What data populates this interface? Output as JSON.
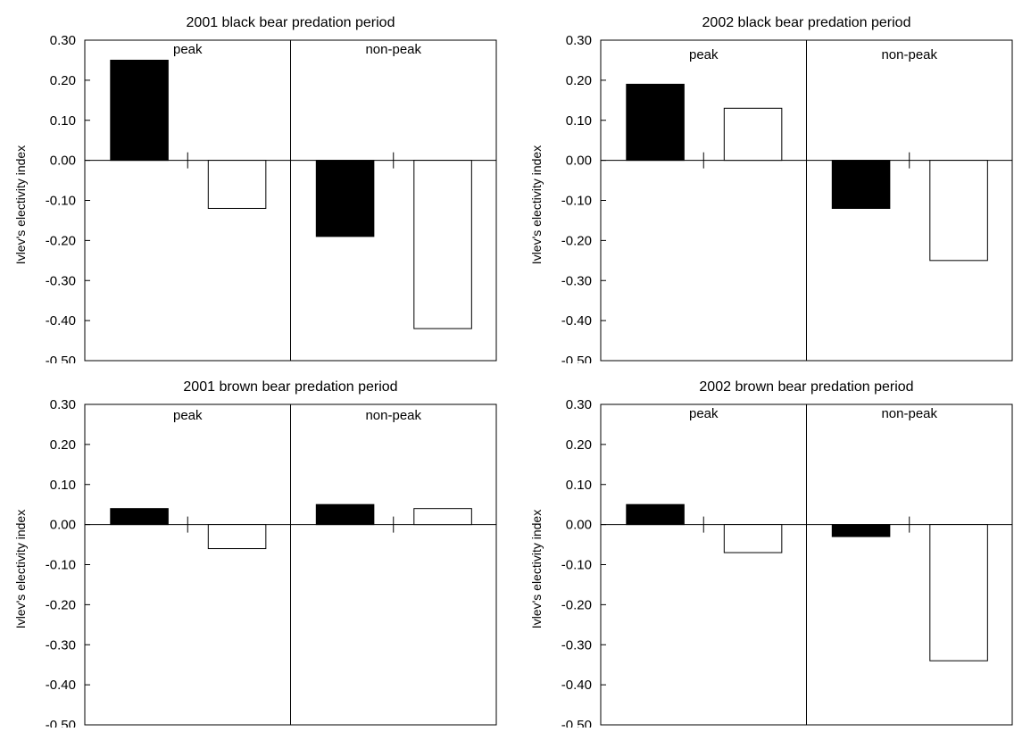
{
  "chart_data": [
    {
      "type": "bar",
      "title": "2001 black bear predation period",
      "ylabel": "Ivlev's electivity index",
      "ylim": [
        -0.5,
        0.3
      ],
      "yticks": [
        "0.30",
        "0.20",
        "0.10",
        "0.00",
        "-0.10",
        "-0.20",
        "-0.30",
        "-0.40",
        "-0.50"
      ],
      "periods": [
        "peak",
        "non-peak"
      ],
      "series": [
        {
          "fill": "black",
          "values": [
            0.25,
            -0.19
          ]
        },
        {
          "fill": "white",
          "values": [
            -0.12,
            -0.42
          ]
        }
      ]
    },
    {
      "type": "bar",
      "title": "2002 black bear predation period",
      "ylabel": "Ivlev's electivity index",
      "ylim": [
        -0.5,
        0.3
      ],
      "yticks": [
        "0.30",
        "0.20",
        "0.10",
        "0.00",
        "-0.10",
        "-0.20",
        "-0.30",
        "-0.40",
        "-0.50"
      ],
      "periods": [
        "peak",
        "non-peak"
      ],
      "series": [
        {
          "fill": "black",
          "values": [
            0.19,
            -0.12
          ]
        },
        {
          "fill": "white",
          "values": [
            0.13,
            -0.25
          ]
        }
      ]
    },
    {
      "type": "bar",
      "title": "2001 brown bear predation period",
      "ylabel": "Ivlev's electivity index",
      "ylim": [
        -0.5,
        0.3
      ],
      "yticks": [
        "0.30",
        "0.20",
        "0.10",
        "0.00",
        "-0.10",
        "-0.20",
        "-0.30",
        "-0.40",
        "-0.50"
      ],
      "periods": [
        "peak",
        "non-peak"
      ],
      "series": [
        {
          "fill": "black",
          "values": [
            0.04,
            0.05
          ]
        },
        {
          "fill": "white",
          "values": [
            -0.06,
            0.04
          ]
        }
      ]
    },
    {
      "type": "bar",
      "title": "2002 brown bear predation period",
      "ylabel": "Ivlev's electivity index",
      "ylim": [
        -0.5,
        0.3
      ],
      "yticks": [
        "0.30",
        "0.20",
        "0.10",
        "0.00",
        "-0.10",
        "-0.20",
        "-0.30",
        "-0.40",
        "-0.50"
      ],
      "periods": [
        "peak",
        "non-peak"
      ],
      "series": [
        {
          "fill": "black",
          "values": [
            0.05,
            -0.03
          ]
        },
        {
          "fill": "white",
          "values": [
            -0.07,
            -0.34
          ]
        }
      ]
    }
  ],
  "colors": {
    "dark_bar": "#000000",
    "light_bar": "#ffffff",
    "axis": "#000000"
  }
}
